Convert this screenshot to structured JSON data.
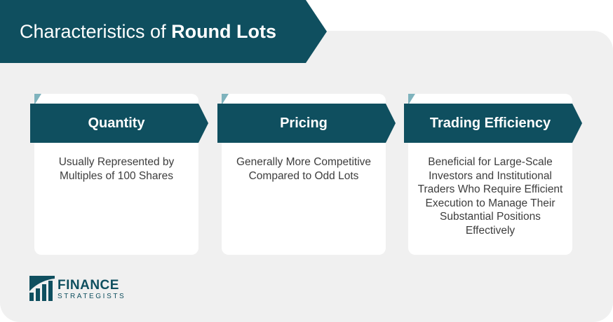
{
  "title": {
    "regular": "Characteristics of ",
    "bold": "Round Lots"
  },
  "cards": [
    {
      "heading": "Quantity",
      "body": "Usually Represented by Multiples of 100 Shares"
    },
    {
      "heading": "Pricing",
      "body": "Generally More Competitive Compared to Odd Lots"
    },
    {
      "heading": "Trading Efficiency",
      "body": "Beneficial for Large-Scale Investors and Institutional Traders Who Require Efficient Execution to Manage Their Substantial Positions Effectively"
    }
  ],
  "logo": {
    "line1": "FINANCE",
    "line2": "STRATEGISTS"
  },
  "colors": {
    "brand": "#0f4f5f",
    "panel": "#f0f0f0",
    "card": "#ffffff"
  }
}
